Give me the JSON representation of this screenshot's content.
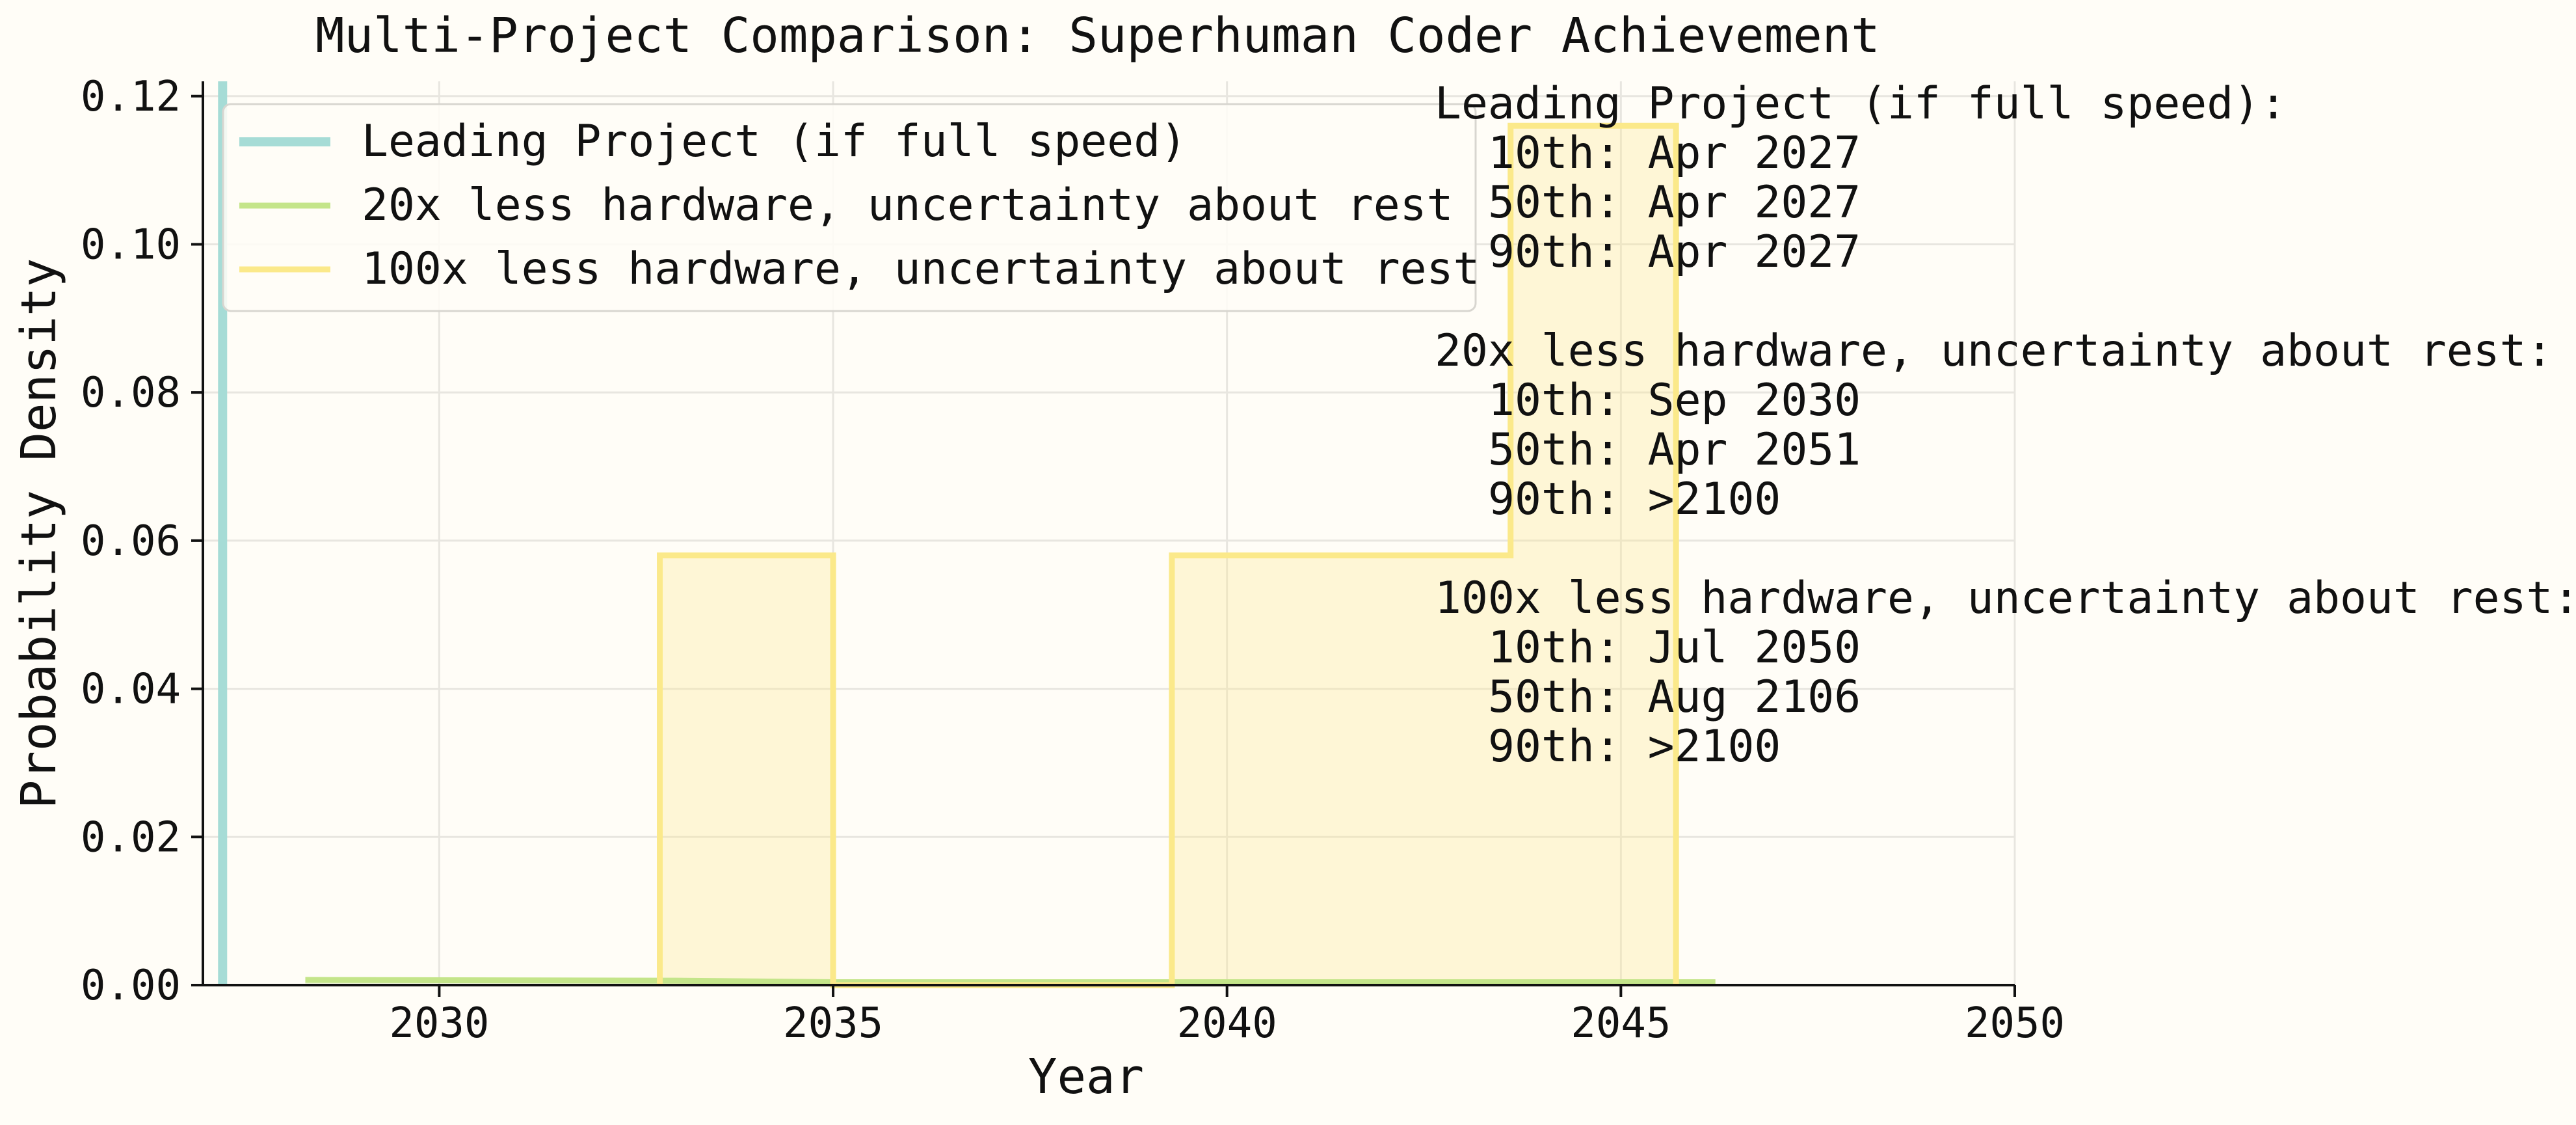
{
  "chart_data": {
    "type": "area",
    "title": "Multi-Project Comparison: Superhuman Coder Achievement",
    "xlabel": "Year",
    "ylabel": "Probability Density",
    "xlim": [
      2027,
      2050
    ],
    "ylim": [
      0,
      0.122
    ],
    "x_ticks": [
      2030,
      2035,
      2040,
      2045,
      2050
    ],
    "y_ticks": [
      0.0,
      0.02,
      0.04,
      0.06,
      0.08,
      0.1,
      0.12
    ],
    "x_tick_labels": [
      "2030",
      "2035",
      "2040",
      "2045",
      "2050"
    ],
    "y_tick_labels": [
      "0.00",
      "0.02",
      "0.04",
      "0.06",
      "0.08",
      "0.10",
      "0.12"
    ],
    "grid": true,
    "legend_position": "top-left",
    "series": [
      {
        "name": "Leading Project (if full speed)",
        "color": "#a6dcd6",
        "kind": "vertical-spike",
        "x": 2027.25
      },
      {
        "name": "20x less hardware, uncertainty about rest",
        "color": "#c4e58a",
        "kind": "step",
        "points": [
          [
            2028.3,
            0.0007
          ],
          [
            2033.0,
            0.0006
          ],
          [
            2035.0,
            0.0004
          ],
          [
            2039.3,
            0.0004
          ],
          [
            2043.6,
            0.0004
          ],
          [
            2045.7,
            0.0004
          ],
          [
            2046.2,
            0.0004
          ]
        ]
      },
      {
        "name": "100x less hardware, uncertainty about rest",
        "color": "#fbe98a",
        "kind": "step",
        "points": [
          [
            2032.8,
            0.0
          ],
          [
            2032.8,
            0.058
          ],
          [
            2035.0,
            0.058
          ],
          [
            2035.0,
            0.0
          ],
          [
            2039.3,
            0.0
          ],
          [
            2039.3,
            0.058
          ],
          [
            2043.6,
            0.058
          ],
          [
            2043.6,
            0.116
          ],
          [
            2045.7,
            0.116
          ],
          [
            2045.7,
            0.0
          ]
        ]
      }
    ],
    "annotations": [
      {
        "heading": "Leading Project (if full speed):",
        "lines": [
          "10th: Apr 2027",
          "50th: Apr 2027",
          "90th: Apr 2027"
        ]
      },
      {
        "heading": "20x less hardware, uncertainty about rest:",
        "lines": [
          "10th: Sep 2030",
          "50th: Apr 2051",
          "90th: >2100"
        ]
      },
      {
        "heading": "100x less hardware, uncertainty about rest:",
        "lines": [
          "10th: Jul 2050",
          "50th: Aug 2106",
          "90th: >2100"
        ]
      }
    ]
  }
}
